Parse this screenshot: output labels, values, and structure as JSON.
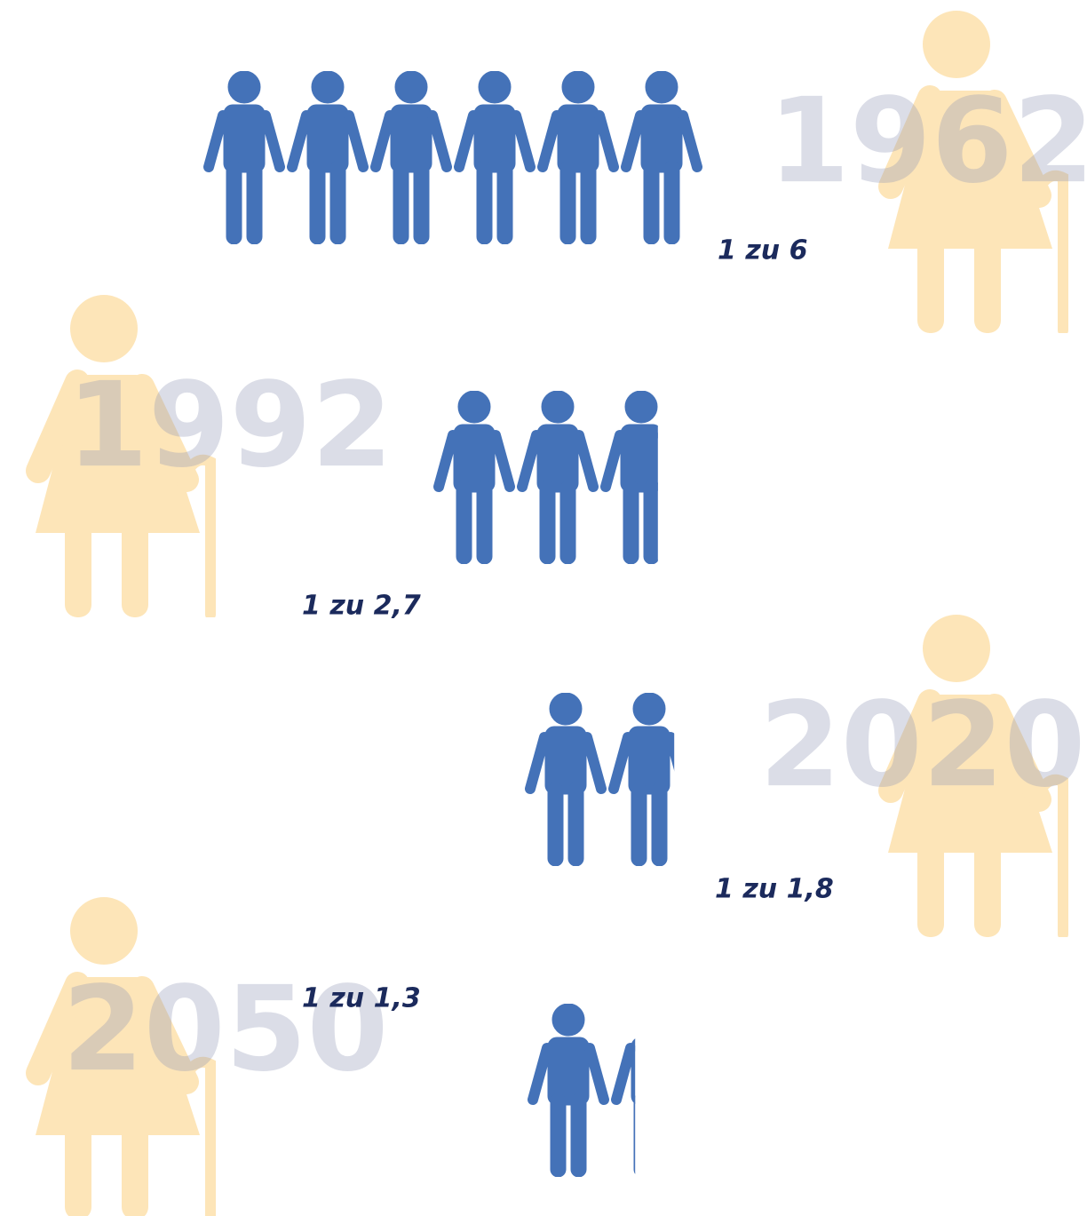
{
  "chart_data": {
    "type": "pictogram",
    "categories": [
      "1962",
      "1992",
      "2020",
      "2050"
    ],
    "values": [
      6,
      2.7,
      1.8,
      1.3
    ],
    "value_labels": [
      "1 zu 6",
      "1 zu 2,7",
      "1 zu 1,8",
      "1 zu 1,3"
    ],
    "color": "#4472b8"
  }
}
